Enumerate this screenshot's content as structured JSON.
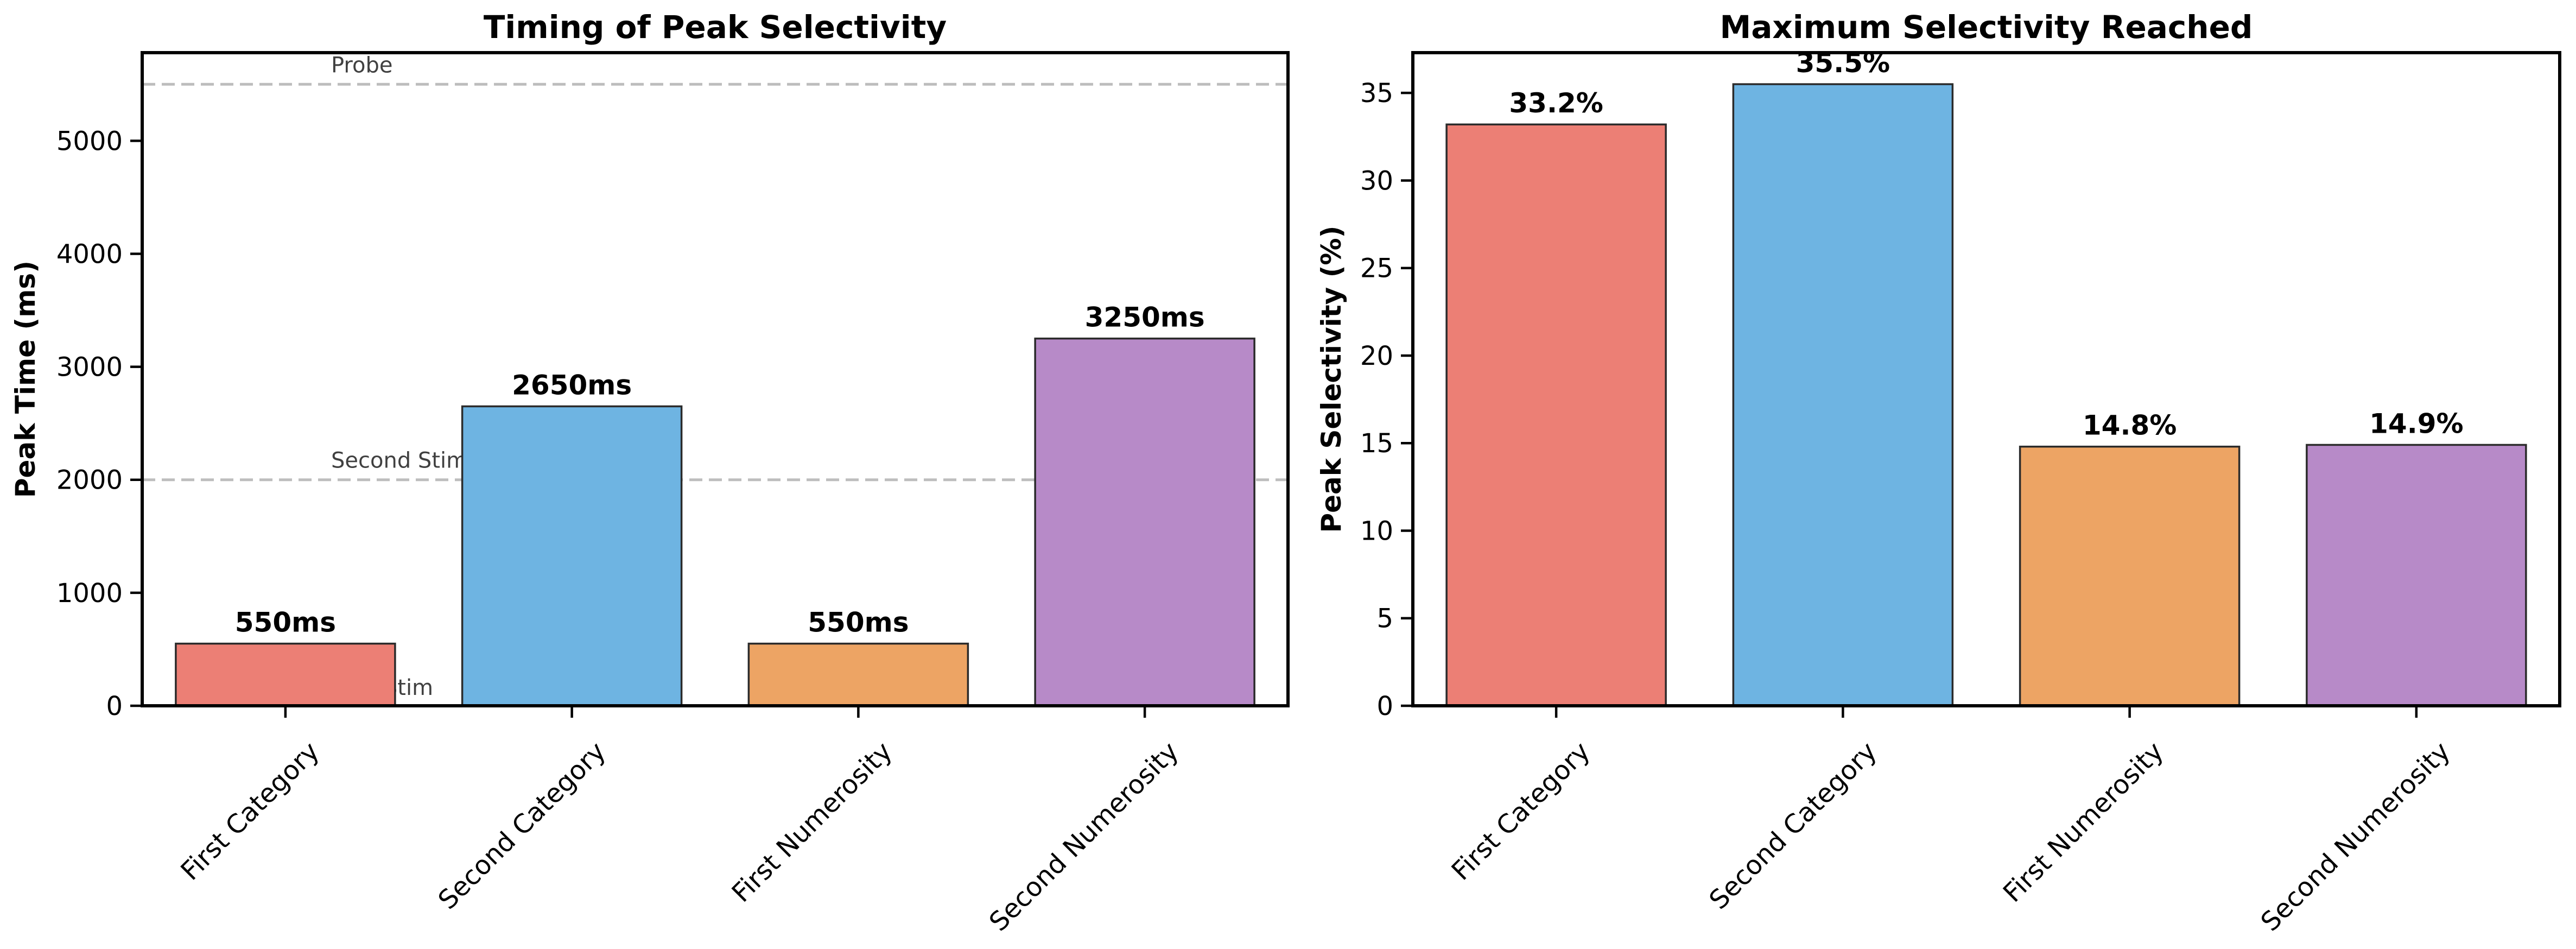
{
  "chart_data": [
    {
      "type": "bar",
      "title": "Timing of Peak Selectivity",
      "xlabel": "",
      "ylabel": "Peak Time (ms)",
      "categories": [
        "First Category",
        "Second Category",
        "First Numerosity",
        "Second Numerosity"
      ],
      "values": [
        550,
        2650,
        550,
        3250
      ],
      "value_labels": [
        "550ms",
        "2650ms",
        "550ms",
        "3250ms"
      ],
      "colors": [
        "#EC7F75",
        "#6EB4E2",
        "#EDA464",
        "#B78AC8"
      ],
      "ylim": [
        0,
        5780
      ],
      "yticks": [
        0,
        1000,
        2000,
        3000,
        4000,
        5000
      ],
      "ytick_labels": [
        "0",
        "1000",
        "2000",
        "3000",
        "4000",
        "5000"
      ],
      "reference_lines": [
        {
          "label": "First Stim",
          "value": 0
        },
        {
          "label": "Second Stim",
          "value": 2000
        },
        {
          "label": "Probe",
          "value": 5500
        }
      ],
      "grid": false,
      "legend": "none"
    },
    {
      "type": "bar",
      "title": "Maximum Selectivity Reached",
      "xlabel": "",
      "ylabel": "Peak Selectivity (%)",
      "categories": [
        "First Category",
        "Second Category",
        "First Numerosity",
        "Second Numerosity"
      ],
      "values": [
        33.2,
        35.5,
        14.8,
        14.9
      ],
      "value_labels": [
        "33.2%",
        "35.5%",
        "14.8%",
        "14.9%"
      ],
      "colors": [
        "#EC7F75",
        "#6EB4E2",
        "#EDA464",
        "#B78AC8"
      ],
      "ylim": [
        0,
        37.3
      ],
      "yticks": [
        0,
        5,
        10,
        15,
        20,
        25,
        30,
        35
      ],
      "ytick_labels": [
        "0",
        "5",
        "10",
        "15",
        "20",
        "25",
        "30",
        "35"
      ],
      "reference_lines": [],
      "grid": false,
      "legend": "none"
    }
  ]
}
